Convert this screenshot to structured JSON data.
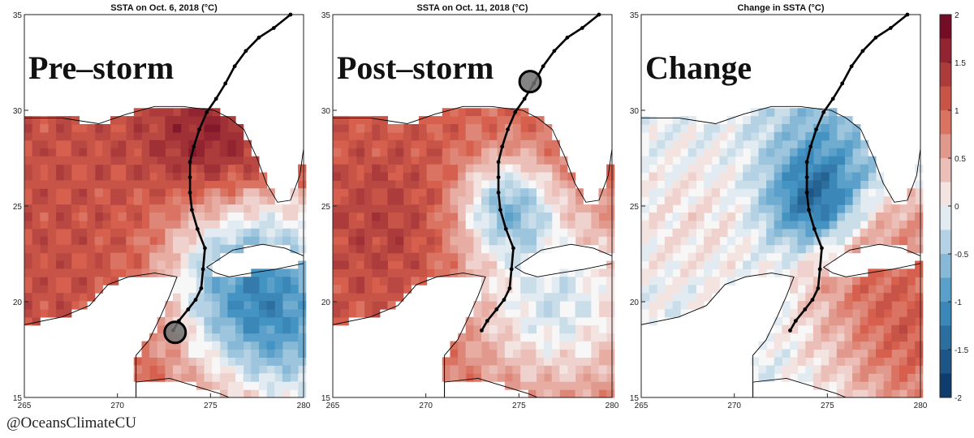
{
  "credit": "@OceansClimateCU",
  "panels": [
    {
      "title": "SSTA on Oct. 6, 2018 (°C)",
      "label": "Pre–storm"
    },
    {
      "title": "SSTA on Oct. 11, 2018 (°C)",
      "label": "Post–storm"
    },
    {
      "title": "Change in SSTA (°C)",
      "label": "Change"
    }
  ],
  "axes": {
    "x_ticks": [
      "265",
      "270",
      "275",
      "280"
    ],
    "y_ticks": [
      "35",
      "30",
      "25",
      "20",
      "15"
    ],
    "x_range": [
      265,
      280
    ],
    "y_range": [
      15,
      35
    ]
  },
  "colorbar": {
    "ticks": [
      "2",
      "1.5",
      "1",
      "0.5",
      "0",
      "-0.5",
      "-1",
      "-1.5",
      "-2"
    ],
    "range": [
      -2,
      2
    ]
  },
  "storm_track": [
    [
      273.0,
      18.5
    ],
    [
      273.3,
      19.0
    ],
    [
      273.8,
      19.6
    ],
    [
      274.2,
      20.1
    ],
    [
      274.5,
      20.7
    ],
    [
      274.6,
      21.7
    ],
    [
      274.7,
      22.8
    ],
    [
      274.3,
      23.8
    ],
    [
      274.0,
      24.8
    ],
    [
      273.9,
      25.7
    ],
    [
      273.9,
      26.5
    ],
    [
      273.9,
      27.3
    ],
    [
      274.1,
      28.1
    ],
    [
      274.4,
      29.0
    ],
    [
      274.8,
      29.9
    ],
    [
      275.3,
      30.6
    ],
    [
      275.8,
      31.4
    ],
    [
      276.3,
      32.3
    ],
    [
      276.9,
      33.1
    ],
    [
      277.6,
      33.8
    ],
    [
      278.4,
      34.3
    ],
    [
      279.3,
      35.0
    ]
  ],
  "storm_position": [
    {
      "lon": 273.1,
      "lat": 18.4
    },
    {
      "lon": 275.6,
      "lat": 31.5
    }
  ],
  "colors": {
    "warm_max": "#67001f",
    "warm": "#d6604d",
    "neutral": "#f7f7f7",
    "cool": "#4393c3",
    "cool_max": "#053061",
    "land": "#ffffff"
  },
  "icons": [
    "hurricane-position-marker-icon"
  ]
}
